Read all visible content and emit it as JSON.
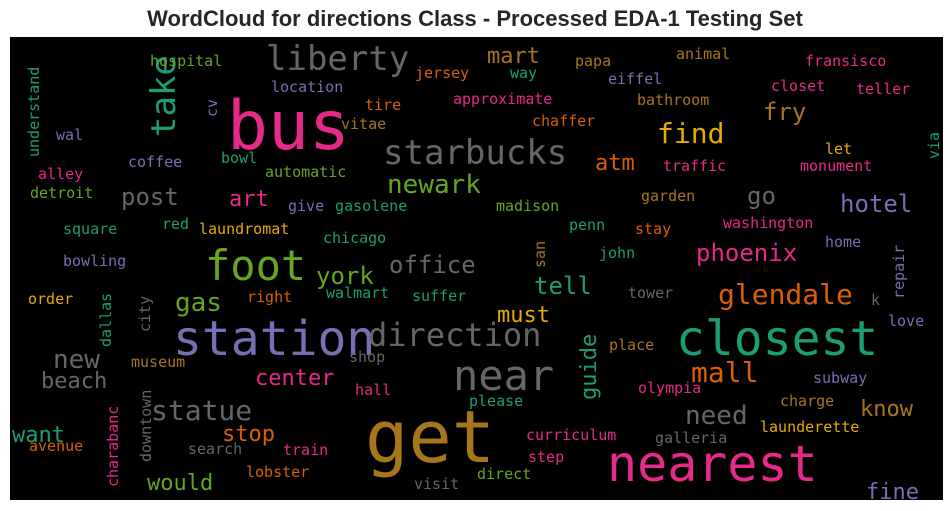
{
  "title": "WordCloud for directions Class - Processed EDA-1 Testing Set",
  "chart_data": {
    "type": "wordcloud",
    "background": "#000000",
    "colormap": "Dark2",
    "words": [
      {
        "text": "bus",
        "color": "#e7298a"
      },
      {
        "text": "get",
        "color": "#a6761d"
      },
      {
        "text": "nearest",
        "color": "#e7298a"
      },
      {
        "text": "station",
        "color": "#7570b3"
      },
      {
        "text": "closest",
        "color": "#1b9e77"
      },
      {
        "text": "foot",
        "color": "#66a61e"
      },
      {
        "text": "near",
        "color": "#666666"
      },
      {
        "text": "liberty",
        "color": "#666666"
      },
      {
        "text": "starbucks",
        "color": "#666666"
      },
      {
        "text": "direction",
        "color": "#666666"
      },
      {
        "text": "take",
        "color": "#1b9e77"
      },
      {
        "text": "glendale",
        "color": "#d95f02"
      },
      {
        "text": "statue",
        "color": "#666666"
      },
      {
        "text": "mall",
        "color": "#d95f02"
      },
      {
        "text": "find",
        "color": "#e6ab02"
      },
      {
        "text": "newark",
        "color": "#66a61e"
      },
      {
        "text": "need",
        "color": "#666666"
      },
      {
        "text": "gas",
        "color": "#66a61e"
      },
      {
        "text": "new",
        "color": "#666666"
      },
      {
        "text": "phoenix",
        "color": "#e7298a"
      },
      {
        "text": "hotel",
        "color": "#7570b3"
      },
      {
        "text": "office",
        "color": "#666666"
      },
      {
        "text": "york",
        "color": "#66a61e"
      },
      {
        "text": "tell",
        "color": "#1b9e77"
      },
      {
        "text": "center",
        "color": "#e7298a"
      },
      {
        "text": "beach",
        "color": "#666666"
      },
      {
        "text": "stop",
        "color": "#d95f02"
      },
      {
        "text": "would",
        "color": "#66a61e"
      },
      {
        "text": "want",
        "color": "#1b9e77"
      },
      {
        "text": "know",
        "color": "#a6761d"
      },
      {
        "text": "must",
        "color": "#e6ab02"
      },
      {
        "text": "guide",
        "color": "#1b9e77"
      },
      {
        "text": "go",
        "color": "#666666"
      },
      {
        "text": "post",
        "color": "#666666"
      },
      {
        "text": "art",
        "color": "#e7298a"
      },
      {
        "text": "atm",
        "color": "#d95f02"
      },
      {
        "text": "fry",
        "color": "#a6761d"
      },
      {
        "text": "mart",
        "color": "#a6761d"
      },
      {
        "text": "fine",
        "color": "#7570b3"
      },
      {
        "text": "hospital",
        "color": "#66a61e"
      },
      {
        "text": "location",
        "color": "#7570b3"
      },
      {
        "text": "cv",
        "color": "#7570b3"
      },
      {
        "text": "vitae",
        "color": "#a6761d"
      },
      {
        "text": "tire",
        "color": "#d95f02"
      },
      {
        "text": "jersey",
        "color": "#d95f02"
      },
      {
        "text": "way",
        "color": "#1b9e77"
      },
      {
        "text": "papa",
        "color": "#a6761d"
      },
      {
        "text": "animal",
        "color": "#a6761d"
      },
      {
        "text": "fransisco",
        "color": "#e7298a"
      },
      {
        "text": "eiffel",
        "color": "#7570b3"
      },
      {
        "text": "closet",
        "color": "#e7298a"
      },
      {
        "text": "teller",
        "color": "#e7298a"
      },
      {
        "text": "approximate",
        "color": "#e7298a"
      },
      {
        "text": "bathroom",
        "color": "#a6761d"
      },
      {
        "text": "chaffer",
        "color": "#d95f02"
      },
      {
        "text": "understand",
        "color": "#1b9e77"
      },
      {
        "text": "wal",
        "color": "#7570b3"
      },
      {
        "text": "coffee",
        "color": "#7570b3"
      },
      {
        "text": "bowl",
        "color": "#1b9e77"
      },
      {
        "text": "automatic",
        "color": "#66a61e"
      },
      {
        "text": "alley",
        "color": "#e7298a"
      },
      {
        "text": "detroit",
        "color": "#66a61e"
      },
      {
        "text": "traffic",
        "color": "#e7298a"
      },
      {
        "text": "let",
        "color": "#e6ab02"
      },
      {
        "text": "monument",
        "color": "#e7298a"
      },
      {
        "text": "via",
        "color": "#1b9e77"
      },
      {
        "text": "give",
        "color": "#7570b3"
      },
      {
        "text": "gasolene",
        "color": "#1b9e77"
      },
      {
        "text": "madison",
        "color": "#66a61e"
      },
      {
        "text": "garden",
        "color": "#a6761d"
      },
      {
        "text": "square",
        "color": "#1b9e77"
      },
      {
        "text": "red",
        "color": "#1b9e77"
      },
      {
        "text": "laundromat",
        "color": "#e6ab02"
      },
      {
        "text": "chicago",
        "color": "#1b9e77"
      },
      {
        "text": "penn",
        "color": "#1b9e77"
      },
      {
        "text": "stay",
        "color": "#d95f02"
      },
      {
        "text": "washington",
        "color": "#e7298a"
      },
      {
        "text": "san",
        "color": "#a6761d"
      },
      {
        "text": "john",
        "color": "#1b9e77"
      },
      {
        "text": "home",
        "color": "#7570b3"
      },
      {
        "text": "bowling",
        "color": "#7570b3"
      },
      {
        "text": "repair",
        "color": "#7570b3"
      },
      {
        "text": "k",
        "color": "#666666"
      },
      {
        "text": "order",
        "color": "#e6ab02"
      },
      {
        "text": "right",
        "color": "#d95f02"
      },
      {
        "text": "walmart",
        "color": "#1b9e77"
      },
      {
        "text": "suffer",
        "color": "#1b9e77"
      },
      {
        "text": "tower",
        "color": "#666666"
      },
      {
        "text": "dallas",
        "color": "#1b9e77"
      },
      {
        "text": "city",
        "color": "#666666"
      },
      {
        "text": "love",
        "color": "#7570b3"
      },
      {
        "text": "place",
        "color": "#a6761d"
      },
      {
        "text": "shop",
        "color": "#666666"
      },
      {
        "text": "museum",
        "color": "#a6761d"
      },
      {
        "text": "olympia",
        "color": "#e7298a"
      },
      {
        "text": "subway",
        "color": "#7570b3"
      },
      {
        "text": "hall",
        "color": "#e7298a"
      },
      {
        "text": "please",
        "color": "#1b9e77"
      },
      {
        "text": "charge",
        "color": "#a6761d"
      },
      {
        "text": "downtown",
        "color": "#666666"
      },
      {
        "text": "curriculum",
        "color": "#e7298a"
      },
      {
        "text": "galleria",
        "color": "#666666"
      },
      {
        "text": "launderette",
        "color": "#e6ab02"
      },
      {
        "text": "avenue",
        "color": "#d95f02"
      },
      {
        "text": "search",
        "color": "#666666"
      },
      {
        "text": "train",
        "color": "#e7298a"
      },
      {
        "text": "charabanc",
        "color": "#e7298a"
      },
      {
        "text": "step",
        "color": "#e7298a"
      },
      {
        "text": "lobster",
        "color": "#d95f02"
      },
      {
        "text": "direct",
        "color": "#66a61e"
      },
      {
        "text": "visit",
        "color": "#666666"
      }
    ]
  }
}
